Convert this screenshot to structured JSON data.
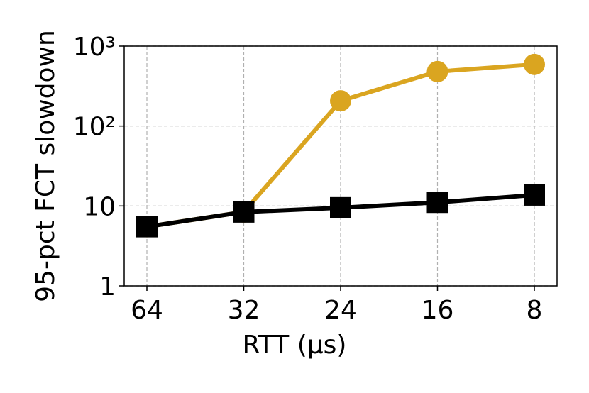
{
  "chart_data": {
    "type": "line",
    "x_label": "RTT (μs)",
    "y_label": "95-pct FCT slowdown",
    "categories": [
      "64",
      "32",
      "24",
      "16",
      "8"
    ],
    "series": [
      {
        "color": "#daa520",
        "marker": "circle",
        "values": [
          5.5,
          8.4,
          207,
          480,
          590
        ]
      },
      {
        "color": "#000000",
        "marker": "square",
        "values": [
          5.5,
          8.4,
          9.5,
          11.1,
          13.7
        ]
      }
    ],
    "ylim": [
      1,
      1000
    ],
    "log_y": true,
    "yticks": [
      1,
      10,
      {
        "value": 100,
        "label": "10²"
      },
      {
        "value": 1000,
        "label": "10³"
      }
    ],
    "grid": true
  }
}
